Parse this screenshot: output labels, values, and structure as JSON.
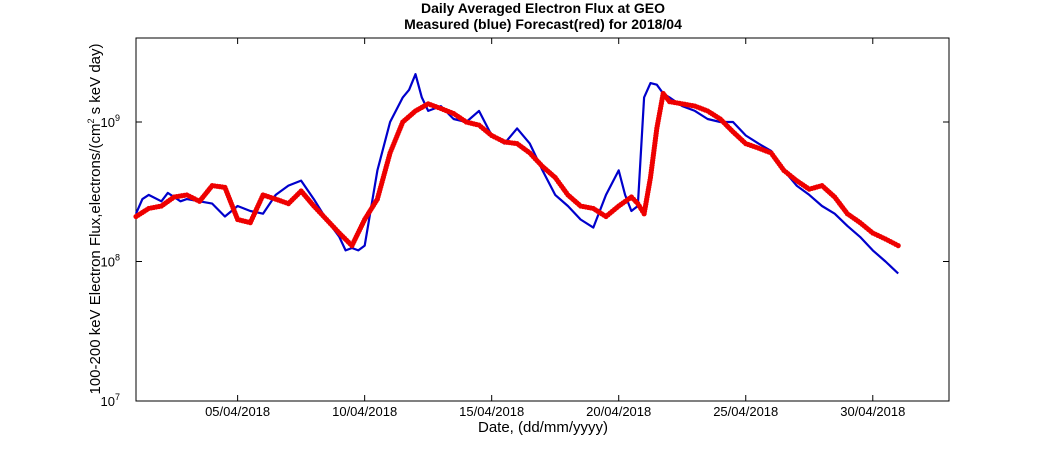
{
  "chart_data": {
    "type": "line",
    "title": "Daily Averaged Electron Flux at GEO",
    "subtitle": "Measured (blue) Forecast(red) for 2018/04",
    "xlabel": "Date, (dd/mm/yyyy)",
    "ylabel": "100-200 keV Electron Flux,electrons/(cm",
    "ylabel_sup": "2",
    "ylabel_tail": " s keV day)",
    "y_scale": "log",
    "ylim": [
      10000000,
      4000000000
    ],
    "xlim": [
      "2018-04-01",
      "2018-05-03"
    ],
    "grid": false,
    "x_ticks": [
      {
        "date": "2018-04-05",
        "label": "05/04/2018"
      },
      {
        "date": "2018-04-10",
        "label": "10/04/2018"
      },
      {
        "date": "2018-04-15",
        "label": "15/04/2018"
      },
      {
        "date": "2018-04-20",
        "label": "20/04/2018"
      },
      {
        "date": "2018-04-25",
        "label": "25/04/2018"
      },
      {
        "date": "2018-04-30",
        "label": "30/04/2018"
      }
    ],
    "y_ticks": [
      {
        "value": 10000000,
        "base": "10",
        "exp": "7"
      },
      {
        "value": 100000000,
        "base": "10",
        "exp": "8"
      },
      {
        "value": 1000000000,
        "base": "10",
        "exp": "9"
      }
    ],
    "series": [
      {
        "color": "#0000cc",
        "style": "line",
        "x": [
          "2018-04-01 00:00",
          "2018-04-01 06:00",
          "2018-04-01 12:00",
          "2018-04-02 00:00",
          "2018-04-02 06:00",
          "2018-04-02 12:00",
          "2018-04-02 18:00",
          "2018-04-03 00:00",
          "2018-04-03 12:00",
          "2018-04-04 00:00",
          "2018-04-04 12:00",
          "2018-04-05 00:00",
          "2018-04-05 12:00",
          "2018-04-06 00:00",
          "2018-04-06 12:00",
          "2018-04-07 00:00",
          "2018-04-07 12:00",
          "2018-04-08 00:00",
          "2018-04-08 12:00",
          "2018-04-09 00:00",
          "2018-04-09 06:00",
          "2018-04-09 12:00",
          "2018-04-09 18:00",
          "2018-04-10 00:00",
          "2018-04-10 12:00",
          "2018-04-11 00:00",
          "2018-04-11 12:00",
          "2018-04-11 18:00",
          "2018-04-12 00:00",
          "2018-04-12 06:00",
          "2018-04-12 12:00",
          "2018-04-13 00:00",
          "2018-04-13 12:00",
          "2018-04-14 00:00",
          "2018-04-14 12:00",
          "2018-04-15 00:00",
          "2018-04-15 12:00",
          "2018-04-16 00:00",
          "2018-04-16 12:00",
          "2018-04-17 00:00",
          "2018-04-17 12:00",
          "2018-04-18 00:00",
          "2018-04-18 12:00",
          "2018-04-19 00:00",
          "2018-04-19 12:00",
          "2018-04-20 00:00",
          "2018-04-20 06:00",
          "2018-04-20 12:00",
          "2018-04-20 18:00",
          "2018-04-21 00:00",
          "2018-04-21 06:00",
          "2018-04-21 12:00",
          "2018-04-21 18:00",
          "2018-04-22 00:00",
          "2018-04-22 12:00",
          "2018-04-23 00:00",
          "2018-04-23 12:00",
          "2018-04-24 00:00",
          "2018-04-24 12:00",
          "2018-04-25 00:00",
          "2018-04-25 12:00",
          "2018-04-26 00:00",
          "2018-04-26 12:00",
          "2018-04-27 00:00",
          "2018-04-27 12:00",
          "2018-04-28 00:00",
          "2018-04-28 12:00",
          "2018-04-29 00:00",
          "2018-04-29 12:00",
          "2018-04-30 00:00",
          "2018-04-30 12:00",
          "2018-05-01 00:00"
        ],
        "y": [
          220000000,
          280000000,
          300000000,
          270000000,
          310000000,
          290000000,
          270000000,
          280000000,
          270000000,
          260000000,
          210000000,
          250000000,
          230000000,
          220000000,
          300000000,
          350000000,
          380000000,
          280000000,
          200000000,
          150000000,
          120000000,
          125000000,
          120000000,
          130000000,
          450000000,
          1000000000,
          1500000000,
          1700000000,
          2200000000,
          1500000000,
          1200000000,
          1300000000,
          1050000000,
          1000000000,
          1200000000,
          800000000,
          700000000,
          900000000,
          700000000,
          450000000,
          300000000,
          250000000,
          200000000,
          175000000,
          300000000,
          450000000,
          300000000,
          230000000,
          250000000,
          1500000000,
          1900000000,
          1850000000,
          1600000000,
          1500000000,
          1300000000,
          1200000000,
          1050000000,
          1000000000,
          1000000000,
          800000000,
          700000000,
          620000000,
          450000000,
          350000000,
          300000000,
          250000000,
          220000000,
          180000000,
          150000000,
          120000000,
          100000000,
          82000000
        ]
      },
      {
        "color": "#ee0000",
        "style": "dots",
        "x": [
          "2018-04-01 00:00",
          "2018-04-01 12:00",
          "2018-04-02 00:00",
          "2018-04-02 12:00",
          "2018-04-03 00:00",
          "2018-04-03 12:00",
          "2018-04-04 00:00",
          "2018-04-04 12:00",
          "2018-04-05 00:00",
          "2018-04-05 12:00",
          "2018-04-06 00:00",
          "2018-04-06 12:00",
          "2018-04-07 00:00",
          "2018-04-07 12:00",
          "2018-04-08 00:00",
          "2018-04-08 12:00",
          "2018-04-09 00:00",
          "2018-04-09 12:00",
          "2018-04-10 00:00",
          "2018-04-10 12:00",
          "2018-04-11 00:00",
          "2018-04-11 12:00",
          "2018-04-12 00:00",
          "2018-04-12 12:00",
          "2018-04-13 00:00",
          "2018-04-13 12:00",
          "2018-04-14 00:00",
          "2018-04-14 12:00",
          "2018-04-15 00:00",
          "2018-04-15 12:00",
          "2018-04-16 00:00",
          "2018-04-16 12:00",
          "2018-04-17 00:00",
          "2018-04-17 12:00",
          "2018-04-18 00:00",
          "2018-04-18 12:00",
          "2018-04-19 00:00",
          "2018-04-19 12:00",
          "2018-04-20 00:00",
          "2018-04-20 12:00",
          "2018-04-20 18:00",
          "2018-04-21 00:00",
          "2018-04-21 06:00",
          "2018-04-21 12:00",
          "2018-04-21 18:00",
          "2018-04-22 00:00",
          "2018-04-22 12:00",
          "2018-04-23 00:00",
          "2018-04-23 12:00",
          "2018-04-24 00:00",
          "2018-04-24 12:00",
          "2018-04-25 00:00",
          "2018-04-25 12:00",
          "2018-04-26 00:00",
          "2018-04-26 12:00",
          "2018-04-27 00:00",
          "2018-04-27 12:00",
          "2018-04-28 00:00",
          "2018-04-28 12:00",
          "2018-04-29 00:00",
          "2018-04-29 12:00",
          "2018-04-30 00:00",
          "2018-04-30 12:00",
          "2018-05-01 00:00"
        ],
        "y": [
          210000000,
          240000000,
          250000000,
          290000000,
          300000000,
          270000000,
          350000000,
          340000000,
          200000000,
          190000000,
          300000000,
          280000000,
          260000000,
          320000000,
          250000000,
          200000000,
          160000000,
          130000000,
          200000000,
          280000000,
          600000000,
          1000000000,
          1200000000,
          1350000000,
          1250000000,
          1150000000,
          1000000000,
          950000000,
          800000000,
          720000000,
          700000000,
          600000000,
          480000000,
          400000000,
          300000000,
          250000000,
          240000000,
          210000000,
          250000000,
          290000000,
          260000000,
          220000000,
          400000000,
          900000000,
          1600000000,
          1400000000,
          1350000000,
          1300000000,
          1200000000,
          1050000000,
          850000000,
          700000000,
          650000000,
          600000000,
          450000000,
          380000000,
          330000000,
          350000000,
          290000000,
          220000000,
          190000000,
          160000000,
          145000000,
          130000000
        ]
      }
    ]
  }
}
